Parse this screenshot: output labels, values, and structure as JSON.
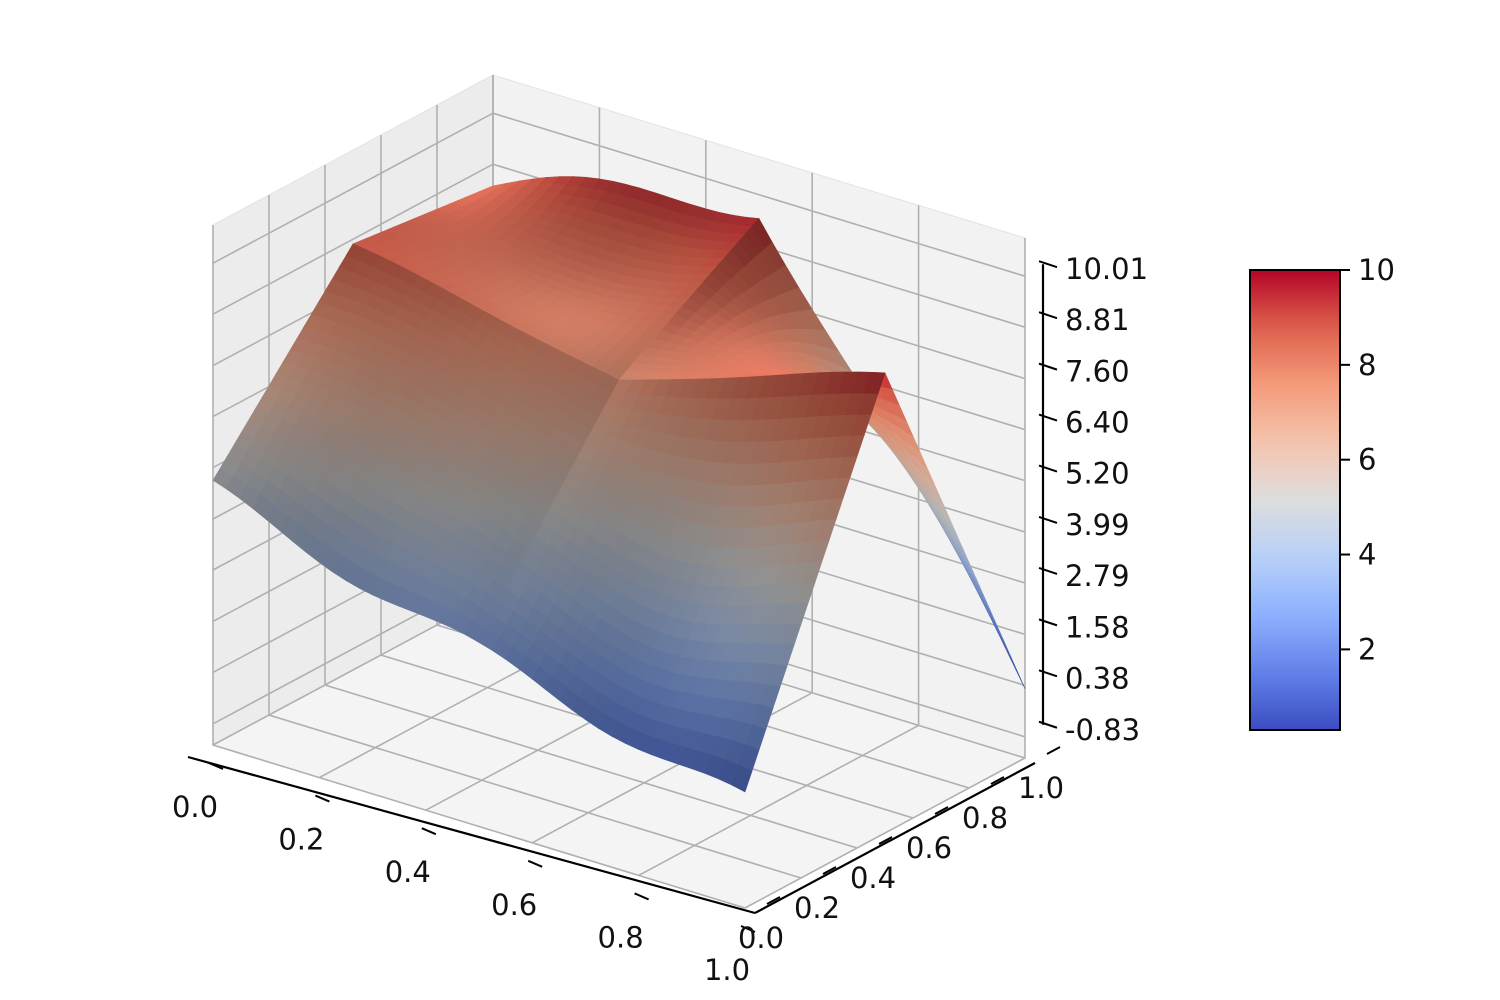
{
  "chart_data": {
    "type": "surface3d",
    "colormap": "coolwarm",
    "x_ticks": [
      "0.0",
      "0.2",
      "0.4",
      "0.6",
      "0.8",
      "1.0"
    ],
    "y_ticks": [
      "0.0",
      "0.2",
      "0.4",
      "0.6",
      "0.8",
      "1.0"
    ],
    "z_ticks": [
      "-0.83",
      "0.38",
      "1.58",
      "2.79",
      "3.99",
      "5.20",
      "6.40",
      "7.60",
      "8.81",
      "10.01"
    ],
    "xlim": [
      0,
      1
    ],
    "ylim": [
      0,
      1
    ],
    "zlim": [
      -0.83,
      10.01
    ],
    "colorbar": {
      "range": [
        0.3,
        10
      ],
      "ticks": [
        "2",
        "4",
        "6",
        "8",
        "10"
      ]
    },
    "surface_samples": [
      {
        "x": 0.0,
        "y": 0.0,
        "z": 4.9
      },
      {
        "x": 0.5,
        "y": 0.0,
        "z": 3.0
      },
      {
        "x": 1.0,
        "y": 0.0,
        "z": 1.4
      },
      {
        "x": 0.0,
        "y": 0.5,
        "z": 8.7
      },
      {
        "x": 0.5,
        "y": 0.5,
        "z": 7.5
      },
      {
        "x": 1.0,
        "y": 0.5,
        "z": 9.5
      },
      {
        "x": 0.0,
        "y": 1.0,
        "z": 8.3
      },
      {
        "x": 0.5,
        "y": 1.0,
        "z": 9.8
      },
      {
        "x": 1.0,
        "y": 1.0,
        "z": 0.3
      }
    ],
    "grid": true,
    "legend": "colorbar-right"
  }
}
